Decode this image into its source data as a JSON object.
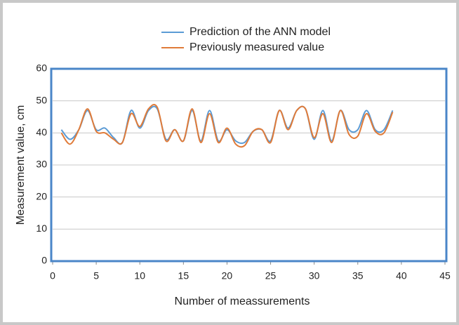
{
  "chart_data": {
    "type": "line",
    "x": [
      1,
      2,
      3,
      4,
      5,
      6,
      7,
      8,
      9,
      10,
      11,
      12,
      13,
      14,
      15,
      16,
      17,
      18,
      19,
      20,
      21,
      22,
      23,
      24,
      25,
      26,
      27,
      28,
      29,
      30,
      31,
      32,
      33,
      34,
      35,
      36,
      37,
      38,
      39
    ],
    "series": [
      {
        "name": "Prediction of the ANN model",
        "color": "#5b9bd5",
        "values": [
          41,
          38,
          41,
          47,
          41,
          41.5,
          38.5,
          37,
          47,
          41.5,
          47,
          47.5,
          38,
          41,
          37.5,
          47,
          37.5,
          47,
          37.5,
          41,
          37.5,
          37,
          40.5,
          41,
          37.5,
          47,
          41.5,
          47,
          47.5,
          38,
          47,
          37.5,
          47,
          41,
          41,
          47,
          41,
          41,
          47
        ]
      },
      {
        "name": "Previously measured value",
        "color": "#e07b39",
        "values": [
          40,
          36.5,
          41,
          47.5,
          40.5,
          40,
          38,
          37,
          46,
          42,
          47.5,
          48,
          37.5,
          41,
          37.5,
          47.5,
          37,
          46,
          37,
          41.5,
          36.5,
          36,
          40.5,
          41,
          37,
          47,
          41,
          47,
          47.5,
          38.5,
          46,
          37,
          47,
          39.5,
          39,
          46,
          40.5,
          40,
          46.5
        ]
      }
    ],
    "xlabel": "Number of meassurements",
    "ylabel": "Measurement value, cm",
    "xlim": [
      0,
      45
    ],
    "xticks": [
      0,
      5,
      10,
      15,
      20,
      25,
      30,
      35,
      40,
      45
    ],
    "ylim": [
      0,
      60
    ],
    "yticks": [
      0,
      10,
      20,
      30,
      40,
      50,
      60
    ],
    "grid": true,
    "legend": "top"
  }
}
